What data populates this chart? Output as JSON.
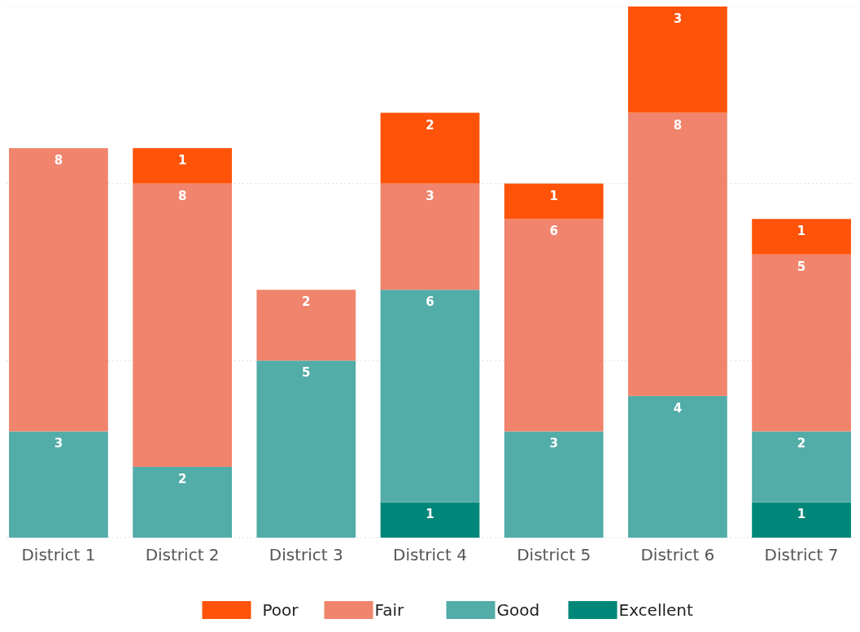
{
  "chart_data": {
    "type": "bar",
    "stacked": true,
    "categories": [
      "District 1",
      "District 2",
      "District 3",
      "District 4",
      "District 5",
      "District 6",
      "District 7"
    ],
    "series": [
      {
        "name": "Excellent",
        "color": "#00877a",
        "values": [
          null,
          null,
          null,
          1,
          null,
          null,
          1
        ]
      },
      {
        "name": "Good",
        "color": "#52aca8",
        "values": [
          3,
          2,
          5,
          6,
          3,
          4,
          2
        ]
      },
      {
        "name": "Fair",
        "color": "#f0846c",
        "values": [
          8,
          8,
          2,
          3,
          6,
          8,
          5
        ]
      },
      {
        "name": "Poor",
        "color": "#ff5309",
        "values": [
          null,
          1,
          null,
          2,
          1,
          3,
          1
        ]
      }
    ],
    "ylim": [
      0,
      15
    ],
    "yticks": [
      {
        "value": 0,
        "label": null
      },
      {
        "value": 5,
        "label": null
      },
      {
        "value": 10,
        "label": null
      },
      {
        "value": 15,
        "label": null
      }
    ],
    "grid": "y",
    "tick_labels": "x",
    "data_labels": true,
    "legend": "bottom"
  }
}
